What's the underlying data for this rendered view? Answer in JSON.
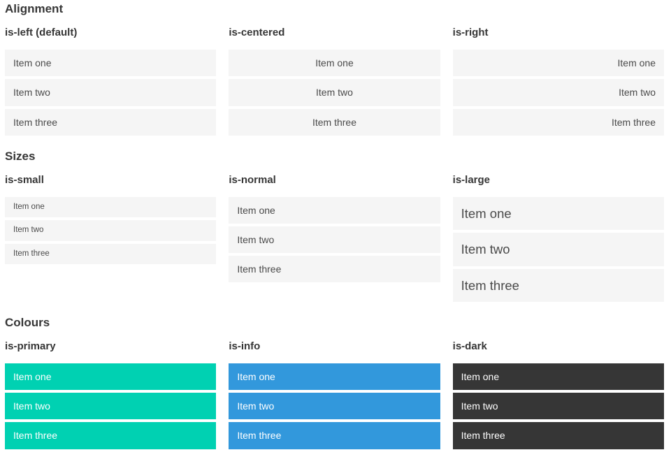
{
  "theme": {
    "primary": "#00d1b2",
    "info": "#3298dc",
    "dark": "#363636",
    "item_background": "#f5f5f5",
    "item_text": "#4a4a4a",
    "heading_text": "#363636",
    "colored_item_text": "#ffffff"
  },
  "sections": [
    {
      "title": "Alignment",
      "columns": [
        {
          "label": "is-left (default)",
          "items": [
            "Item one",
            "Item two",
            "Item three"
          ]
        },
        {
          "label": "is-centered",
          "items": [
            "Item one",
            "Item two",
            "Item three"
          ]
        },
        {
          "label": "is-right",
          "items": [
            "Item one",
            "Item two",
            "Item three"
          ]
        }
      ]
    },
    {
      "title": "Sizes",
      "columns": [
        {
          "label": "is-small",
          "items": [
            "Item one",
            "Item two",
            "Item three"
          ]
        },
        {
          "label": "is-normal",
          "items": [
            "Item one",
            "Item two",
            "Item three"
          ]
        },
        {
          "label": "is-large",
          "items": [
            "Item one",
            "Item two",
            "Item three"
          ]
        }
      ]
    },
    {
      "title": "Colours",
      "columns": [
        {
          "label": "is-primary",
          "items": [
            "Item one",
            "Item two",
            "Item three"
          ]
        },
        {
          "label": "is-info",
          "items": [
            "Item one",
            "Item two",
            "Item three"
          ]
        },
        {
          "label": "is-dark",
          "items": [
            "Item one",
            "Item two",
            "Item three"
          ]
        }
      ]
    }
  ]
}
